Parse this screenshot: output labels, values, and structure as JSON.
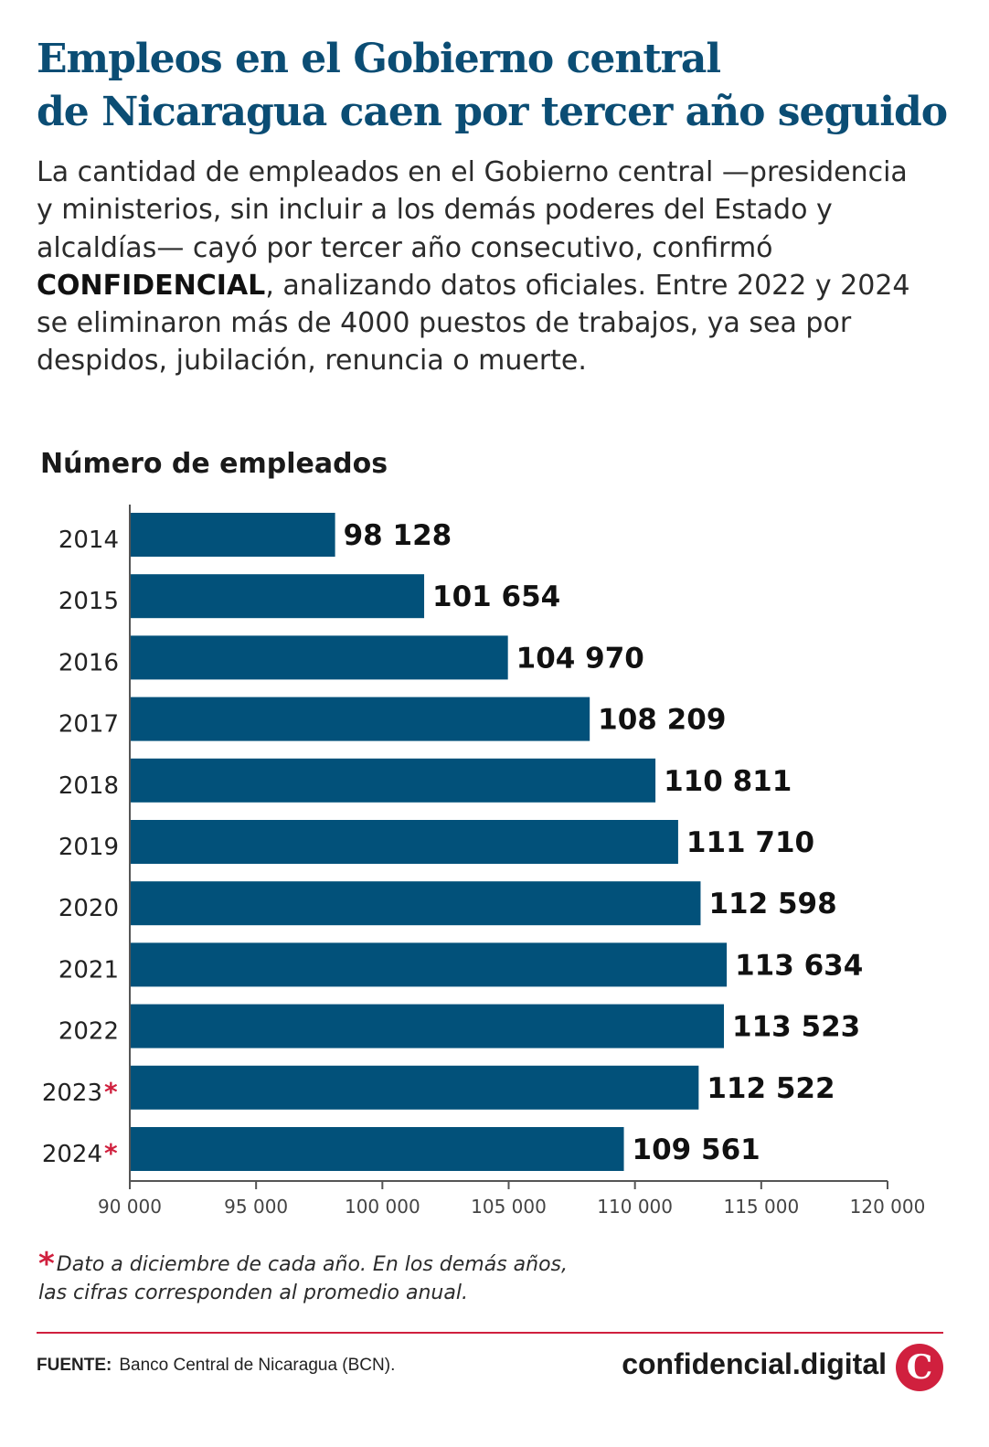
{
  "title": {
    "line1": "Empleos en el Gobierno central",
    "line2": "de Nicaragua caen por tercer año seguido"
  },
  "intro": {
    "part1": "La cantidad de empleados en el Gobierno central —presidencia y ministerios, sin incluir a los demás poderes del Estado y alcaldías— cayó por tercer año consecutivo, confirmó ",
    "brand": "CONFIDENCIAL",
    "part2": ", analizando datos oficiales. Entre 2022 y 2024 se eliminaron más de 4000 puestos de trabajos, ya sea por despidos, jubilación, renuncia o muerte."
  },
  "chart_data": {
    "type": "bar",
    "orientation": "horizontal",
    "title": "Número de empleados",
    "categories": [
      "2014",
      "2015",
      "2016",
      "2017",
      "2018",
      "2019",
      "2020",
      "2021",
      "2022",
      "2023",
      "2024"
    ],
    "asterisk": [
      false,
      false,
      false,
      false,
      false,
      false,
      false,
      false,
      false,
      true,
      true
    ],
    "values": [
      98128,
      101654,
      104970,
      108209,
      110811,
      111710,
      112598,
      113634,
      113523,
      112522,
      109561
    ],
    "value_labels": [
      "98 128",
      "101 654",
      "104 970",
      "108 209",
      "110 811",
      "111 710",
      "112 598",
      "113 634",
      "113 523",
      "112 522",
      "109 561"
    ],
    "xlim": [
      90000,
      120000
    ],
    "xticks": [
      90000,
      95000,
      100000,
      105000,
      110000,
      115000,
      120000
    ],
    "xtick_labels": [
      "90 000",
      "95 000",
      "100 000",
      "105 000",
      "110 000",
      "115 000",
      "120 000"
    ],
    "grid": false,
    "colors": {
      "bar": "#02517a",
      "asterisk": "#d0203e",
      "axis": "#555555"
    }
  },
  "footnote": {
    "star": "*",
    "line1": "Dato a diciembre de cada año. En los demás años,",
    "line2": "las cifras corresponden al promedio anual."
  },
  "source": {
    "label": "FUENTE:",
    "text": "Banco Central de Nicaragua (BCN)."
  },
  "brand": {
    "name": "confidencial.digital",
    "logo_letter": "C",
    "color": "#d0203e"
  }
}
